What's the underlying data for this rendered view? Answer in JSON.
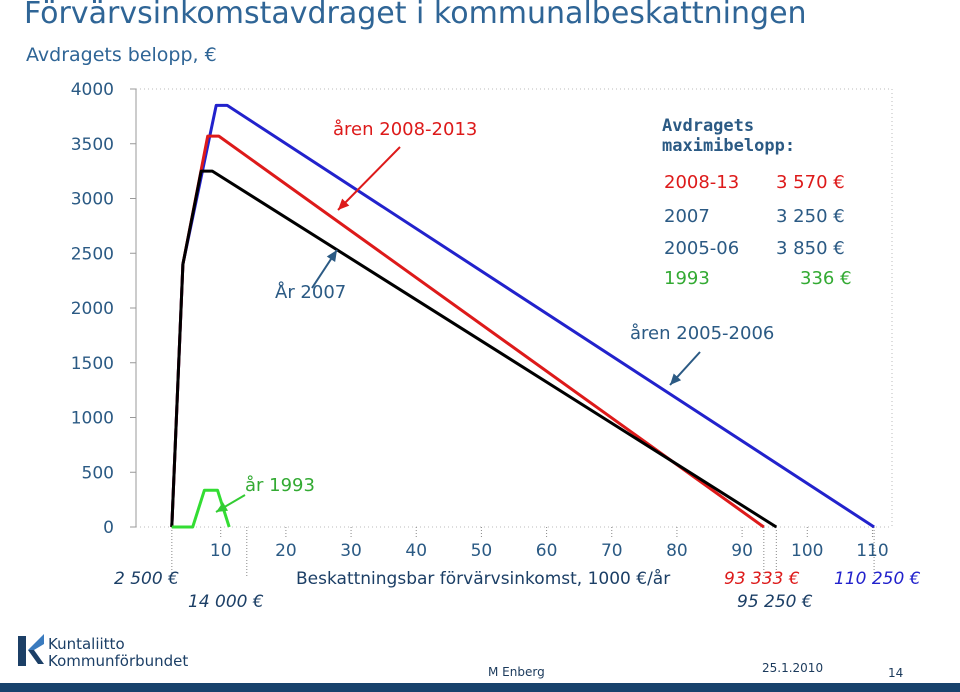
{
  "title": "Förvärvsinkomstavdraget i kommunalbeskattningen",
  "subtitle": "Avdragets belopp, €",
  "chart_data": {
    "type": "line",
    "ylim": [
      0,
      4000
    ],
    "y_ticks": [
      "0",
      "500",
      "1000",
      "1500",
      "2000",
      "2500",
      "3000",
      "3500",
      "4000"
    ],
    "xlim": [
      -3,
      113
    ],
    "x_ticks": [
      "10",
      "20",
      "30",
      "40",
      "50",
      "60",
      "70",
      "80",
      "90",
      "100",
      "110"
    ],
    "xlabel": "Beskattningsbar förvärvsinkomst, 1000 €/år",
    "x_markers": [
      {
        "label": "2 500 €",
        "x": 2.5
      },
      {
        "label": "14 000 €",
        "x": 14
      },
      {
        "label": "93 333 €",
        "x": 93.333
      },
      {
        "label": "95 250 €",
        "x": 95.25
      },
      {
        "label": "110 250 €",
        "x": 110.25
      }
    ],
    "series": [
      {
        "color": "#2222cc",
        "x": [
          2.5,
          4.2,
          9.3,
          11.0,
          110.25
        ],
        "y": [
          0,
          2400,
          3850,
          3850,
          0
        ]
      },
      {
        "color": "#dd1a1a",
        "x": [
          2.5,
          4.2,
          8.0,
          9.7,
          93.333
        ],
        "y": [
          0,
          2400,
          3570,
          3570,
          0
        ]
      },
      {
        "color": "#000000",
        "x": [
          2.5,
          4.2,
          7.0,
          8.7,
          95.25
        ],
        "y": [
          0,
          2400,
          3250,
          3250,
          0
        ]
      },
      {
        "color": "#33dd33",
        "x": [
          2.5,
          5.7,
          7.5,
          9.5,
          11.3
        ],
        "y": [
          0,
          0,
          336,
          336,
          0
        ]
      }
    ],
    "annotations": [
      {
        "text": "åren 2008-2013",
        "color": "#dd1a1a"
      },
      {
        "text": "År 2007",
        "color": "#2b5a84"
      },
      {
        "text": "åren 2005-2006",
        "color": "#2b5a84"
      },
      {
        "text": "år 1993",
        "color": "#33aa33"
      }
    ],
    "legend": {
      "heading": "Avdragets maximibelopp:",
      "rows": [
        {
          "period": "2008-13",
          "amount": "3 570 €",
          "color": "#dd1a1a"
        },
        {
          "period": "2007",
          "amount": "3 250 €",
          "color": "#2b5a84"
        },
        {
          "period": "2005-06",
          "amount": "3 850 €",
          "color": "#2b5a84"
        },
        {
          "period": "1993",
          "amount": "336 €",
          "color": "#33aa33"
        }
      ]
    },
    "grid": false
  },
  "footer": {
    "author": "M Enberg",
    "date": "25.1.2010",
    "page": "14",
    "logo_line1": "Kuntaliitto",
    "logo_line2": "Kommunförbundet"
  }
}
